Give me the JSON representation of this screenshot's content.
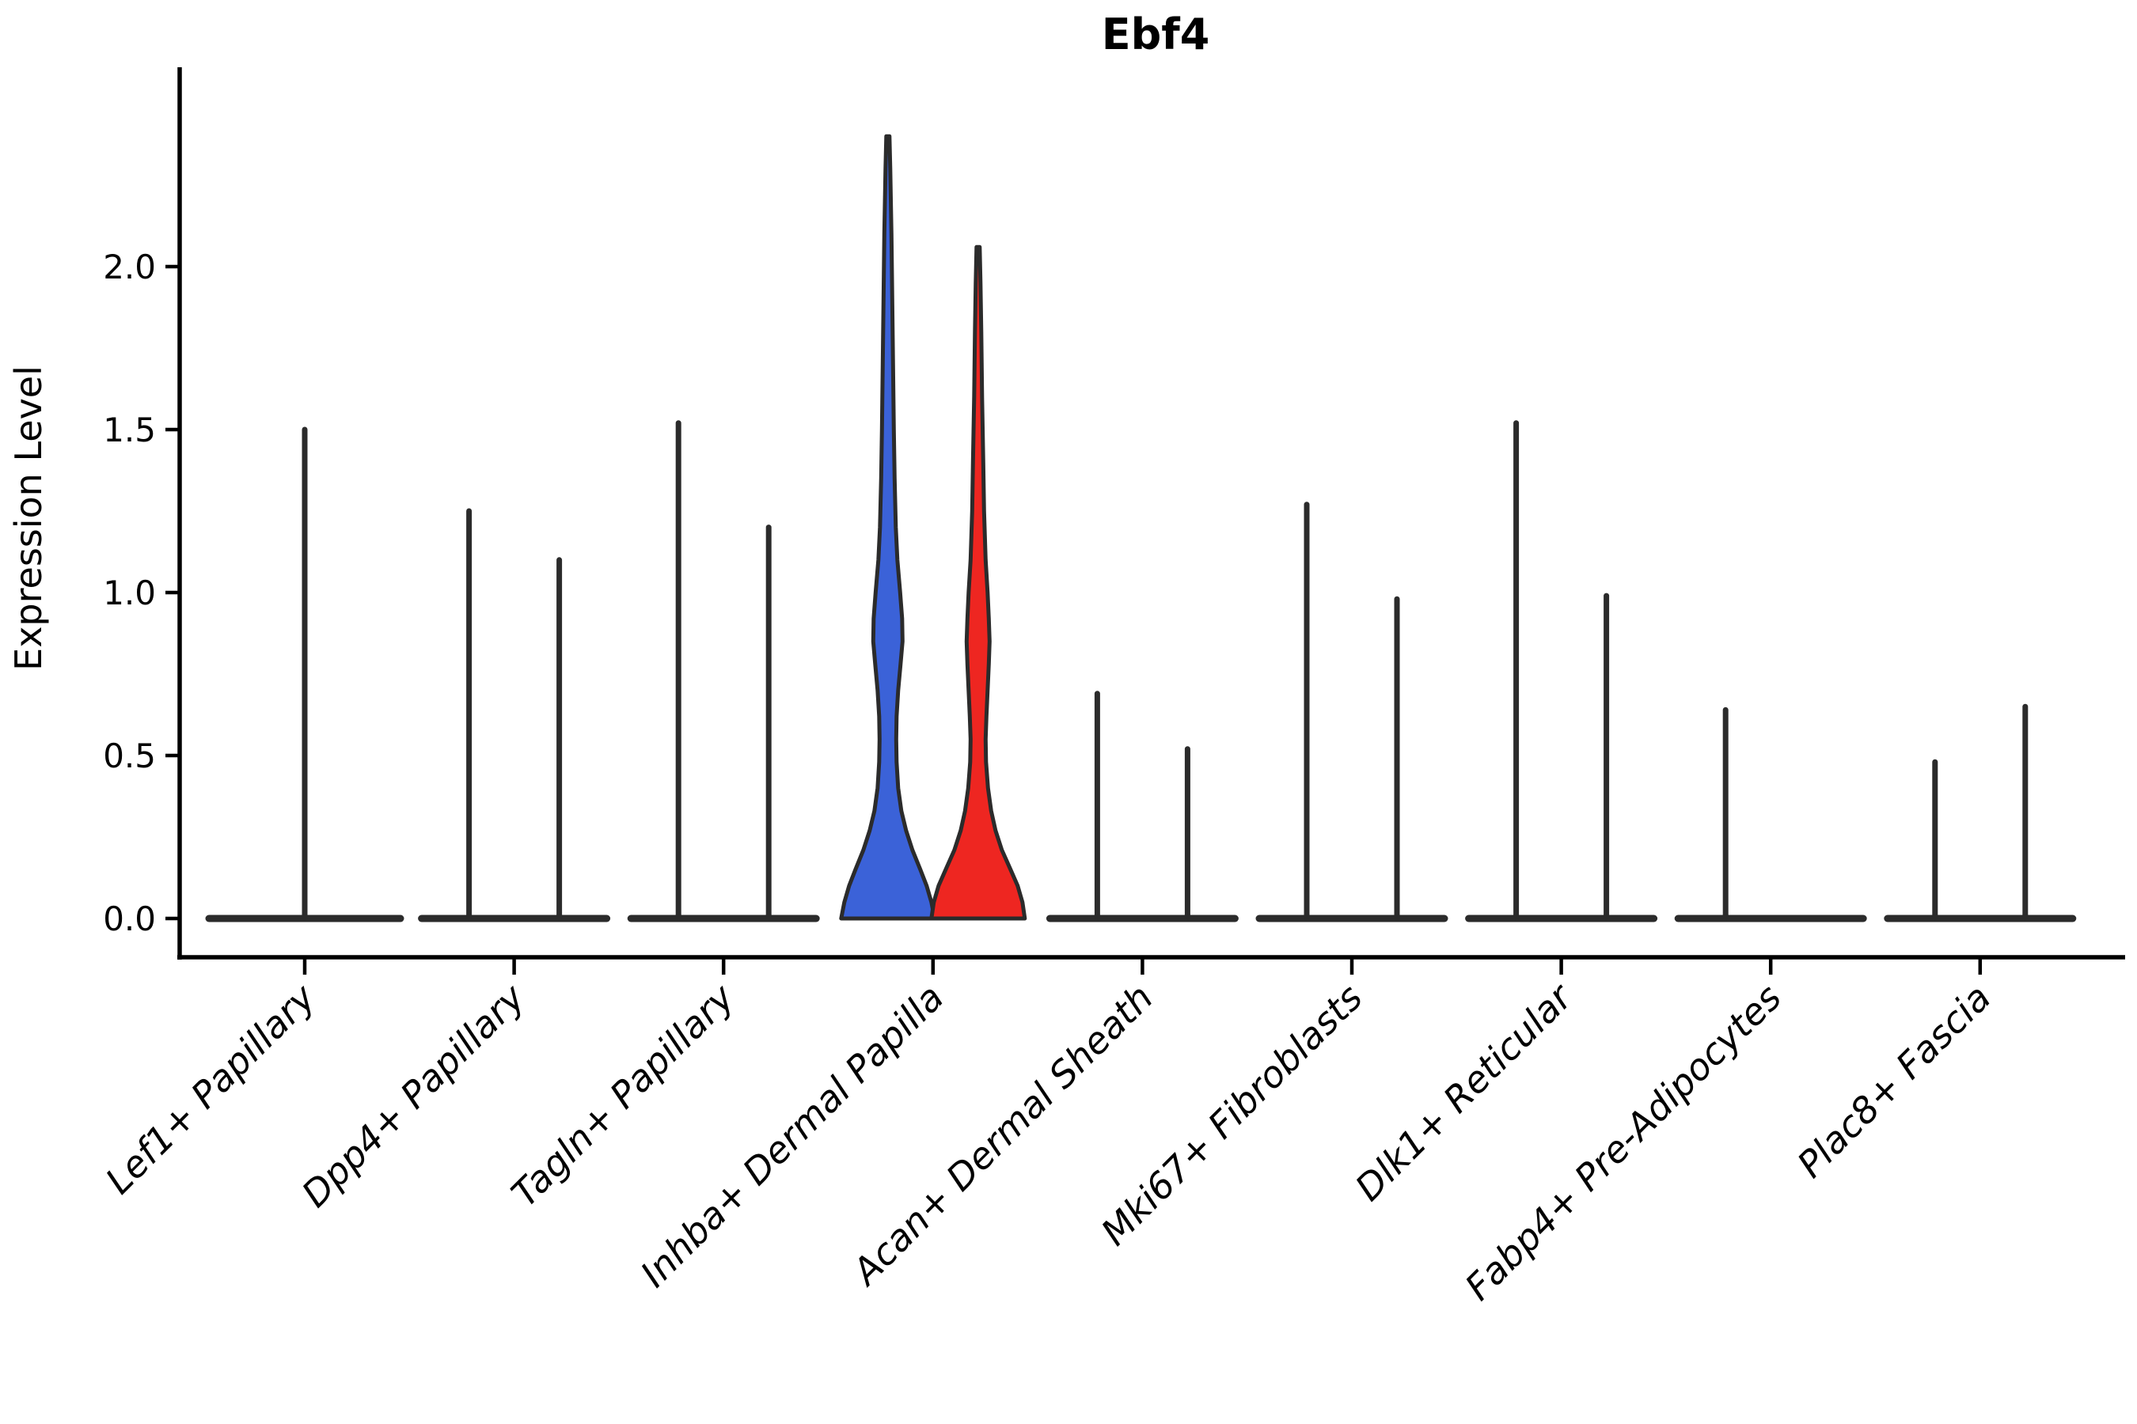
{
  "title": "Ebf4",
  "ylabel": "Expression Level",
  "colors": {
    "group1_blue": "#3b62d8",
    "group2_red": "#ee2621",
    "violin_stroke": "#2b2b2b",
    "axis": "#000000",
    "background": "#ffffff"
  },
  "chart_data": {
    "type": "violin",
    "title": "Ebf4",
    "xlabel": "",
    "ylabel": "Expression Level",
    "yticks": [
      "0.0",
      "0.5",
      "1.0",
      "1.5",
      "2.0"
    ],
    "ytick_values": [
      0.0,
      0.5,
      1.0,
      1.5,
      2.0
    ],
    "ylim": [
      -0.12,
      2.62
    ],
    "grid": "off",
    "legend": "none",
    "split_groups": 2,
    "categories": [
      {
        "label": "Lef1+ Papillary",
        "spikes": [
          {
            "group": "single",
            "max": 1.5
          }
        ]
      },
      {
        "label": "Dpp4+ Papillary",
        "spikes": [
          {
            "group": "left",
            "max": 1.25
          },
          {
            "group": "right",
            "max": 1.1
          }
        ]
      },
      {
        "label": "Tagln+ Papillary",
        "spikes": [
          {
            "group": "left",
            "max": 1.52
          },
          {
            "group": "right",
            "max": 1.2
          }
        ]
      },
      {
        "label": "Inhba+ Dermal Papilla",
        "violins": [
          {
            "group": "left",
            "color_key": "group1_blue",
            "max": 2.4,
            "profile": [
              [
                2.4,
                2
              ],
              [
                2.3,
                3
              ],
              [
                2.1,
                4.5
              ],
              [
                1.9,
                5.5
              ],
              [
                1.7,
                6.5
              ],
              [
                1.5,
                7.5
              ],
              [
                1.35,
                8.5
              ],
              [
                1.2,
                10
              ],
              [
                1.1,
                12
              ],
              [
                1.0,
                15.5
              ],
              [
                0.92,
                18
              ],
              [
                0.85,
                18.5
              ],
              [
                0.78,
                16
              ],
              [
                0.7,
                13
              ],
              [
                0.62,
                11
              ],
              [
                0.55,
                10.5
              ],
              [
                0.48,
                11
              ],
              [
                0.4,
                13
              ],
              [
                0.33,
                17
              ],
              [
                0.27,
                23
              ],
              [
                0.21,
                31
              ],
              [
                0.15,
                41
              ],
              [
                0.1,
                49
              ],
              [
                0.05,
                55
              ],
              [
                0.0,
                59
              ]
            ]
          },
          {
            "group": "right",
            "color_key": "group2_red",
            "max": 2.06,
            "profile": [
              [
                2.06,
                2
              ],
              [
                1.95,
                3
              ],
              [
                1.8,
                4
              ],
              [
                1.6,
                5
              ],
              [
                1.4,
                6.5
              ],
              [
                1.25,
                7.5
              ],
              [
                1.1,
                9.5
              ],
              [
                1.0,
                12
              ],
              [
                0.92,
                13.5
              ],
              [
                0.85,
                14.5
              ],
              [
                0.78,
                13.5
              ],
              [
                0.7,
                12
              ],
              [
                0.62,
                10.5
              ],
              [
                0.55,
                9.5
              ],
              [
                0.48,
                10
              ],
              [
                0.4,
                12.5
              ],
              [
                0.33,
                16.5
              ],
              [
                0.27,
                22
              ],
              [
                0.21,
                30
              ],
              [
                0.15,
                41
              ],
              [
                0.1,
                50
              ],
              [
                0.05,
                56
              ],
              [
                0.0,
                59
              ]
            ]
          }
        ]
      },
      {
        "label": "Acan+ Dermal Sheath",
        "spikes": [
          {
            "group": "left",
            "max": 0.69
          },
          {
            "group": "right",
            "max": 0.52
          }
        ]
      },
      {
        "label": "Mki67+ Fibroblasts",
        "spikes": [
          {
            "group": "left",
            "max": 1.27
          },
          {
            "group": "right",
            "max": 0.98
          }
        ]
      },
      {
        "label": "Dlk1+ Reticular",
        "spikes": [
          {
            "group": "left",
            "max": 1.52
          },
          {
            "group": "right",
            "max": 0.99
          }
        ]
      },
      {
        "label": "Fabp4+ Pre-Adipocytes",
        "spikes": [
          {
            "group": "left",
            "max": 0.64
          }
        ]
      },
      {
        "label": "Plac8+ Fascia",
        "spikes": [
          {
            "group": "left",
            "max": 0.48
          },
          {
            "group": "right",
            "max": 0.65
          }
        ]
      }
    ]
  }
}
